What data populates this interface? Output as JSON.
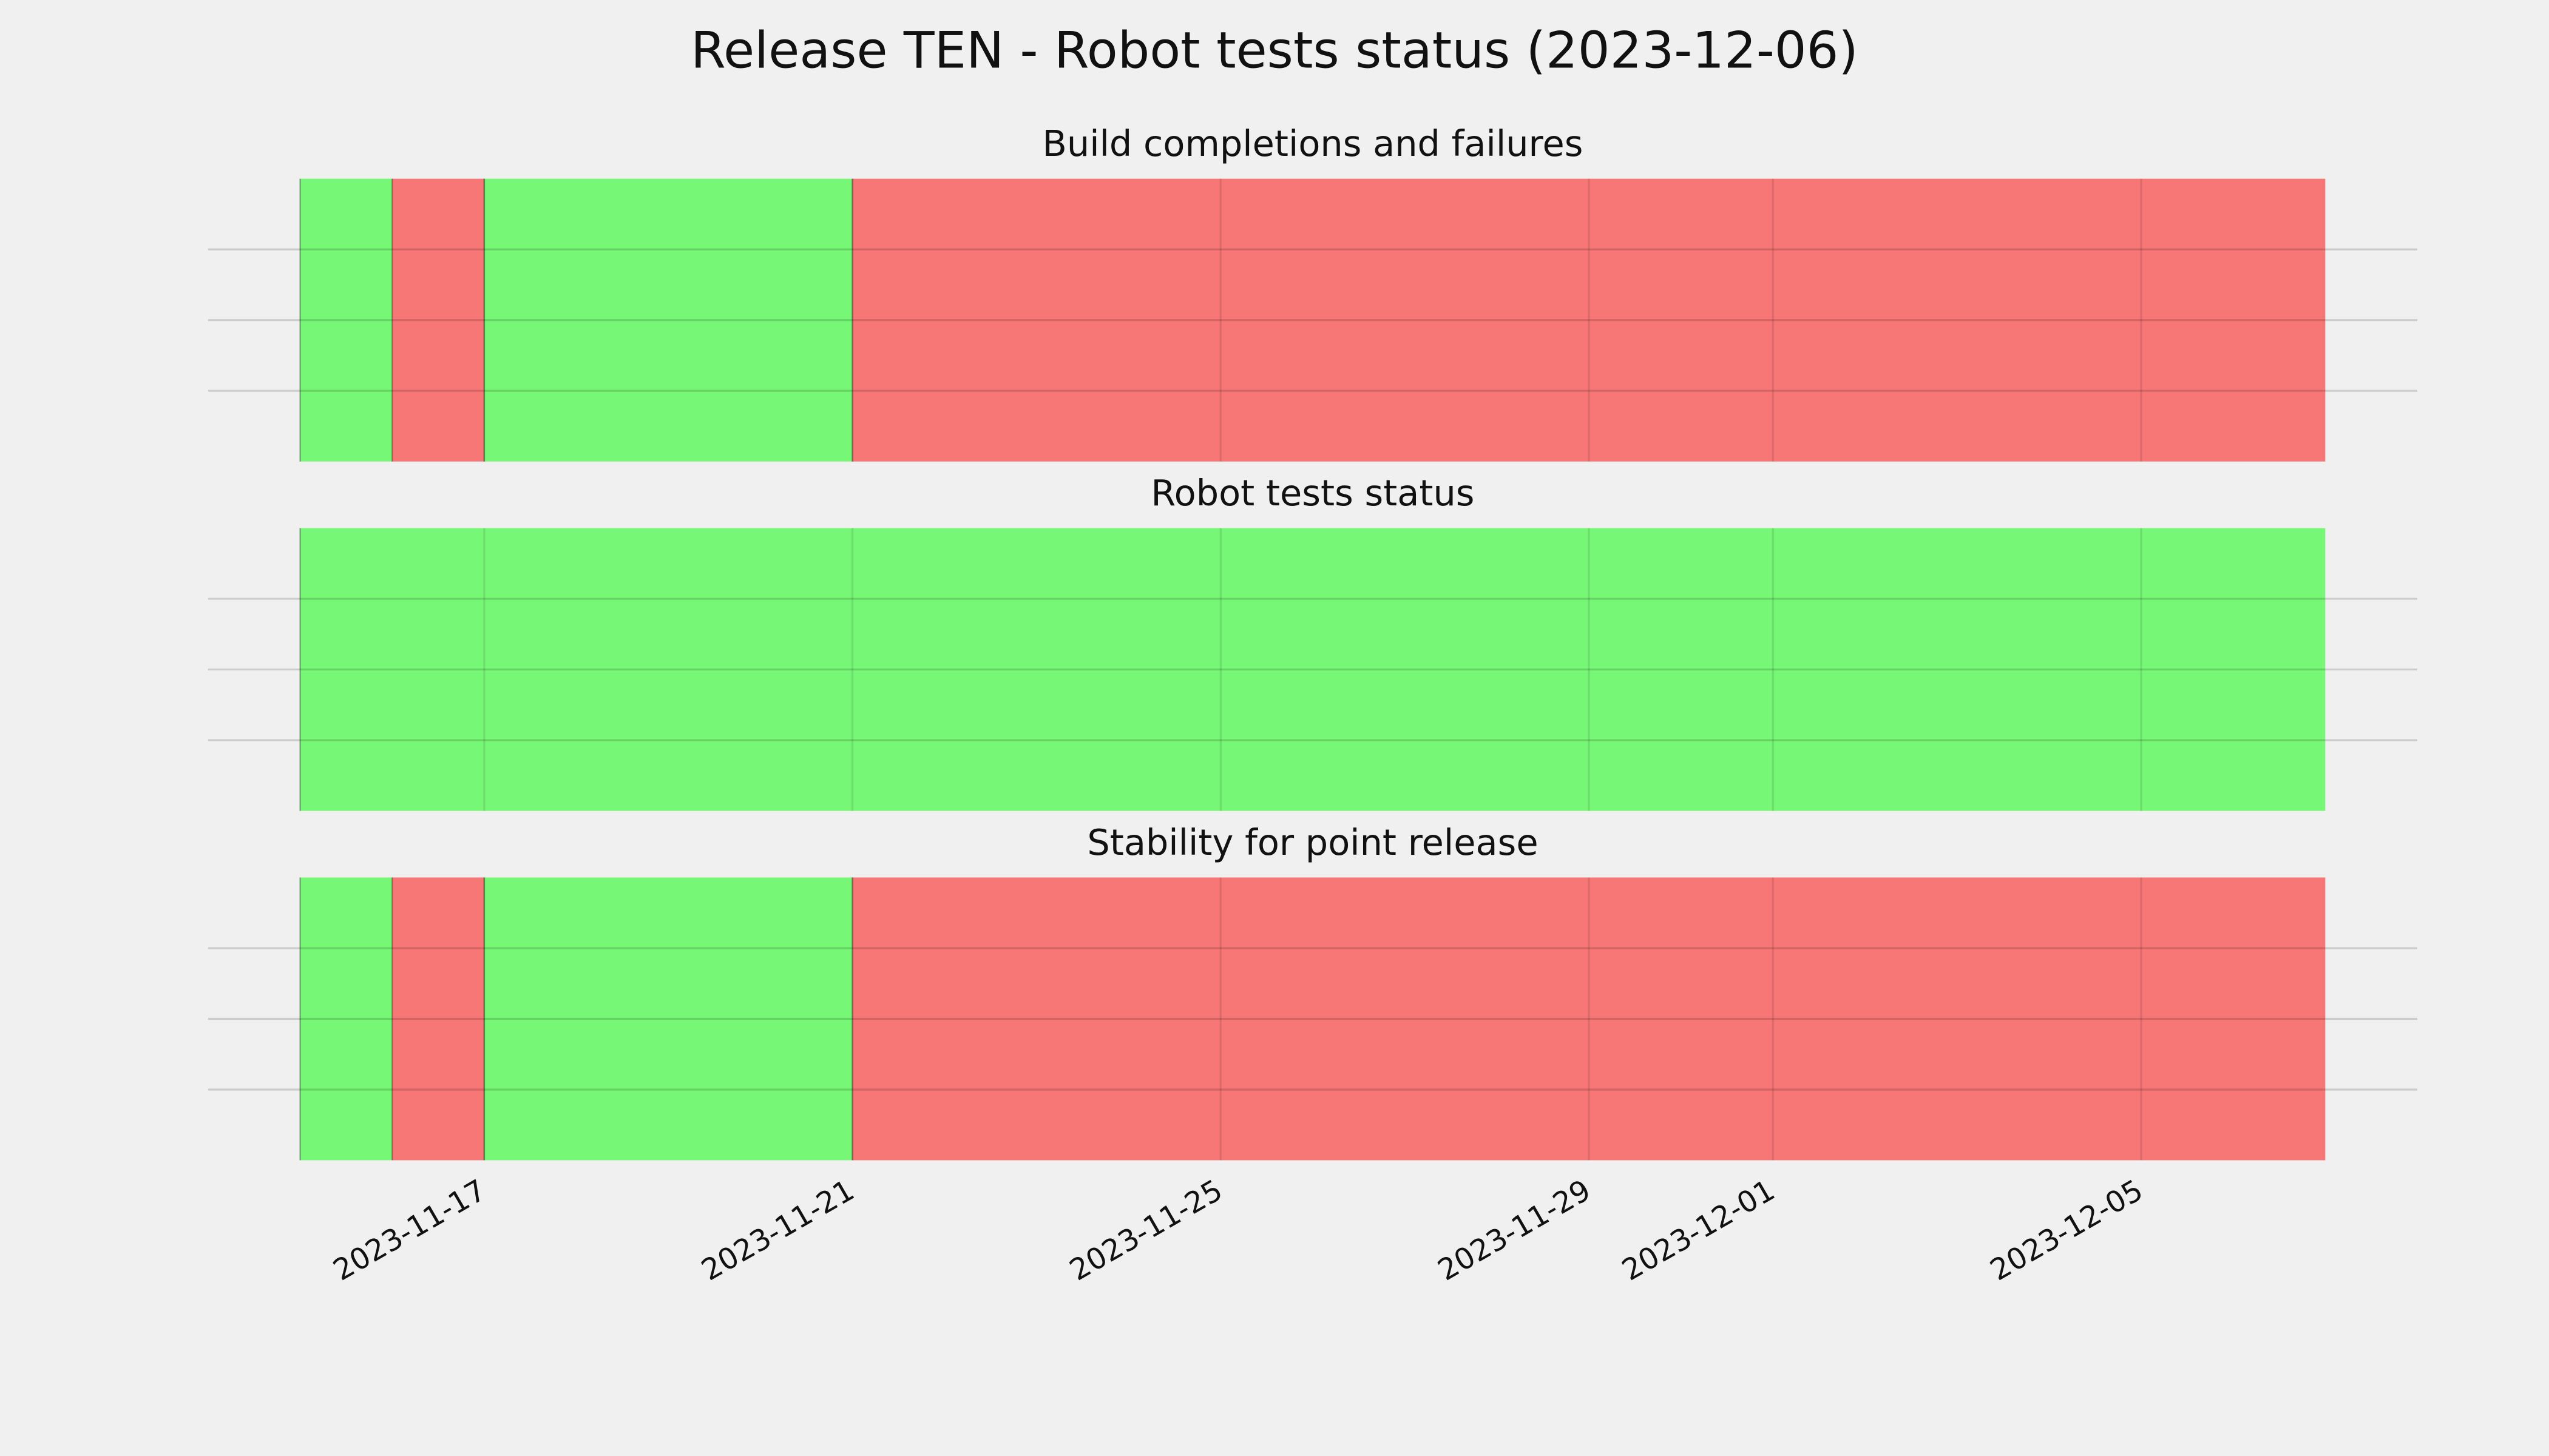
{
  "title": "Release TEN - Robot tests status (2023-12-06)",
  "chart_data": [
    {
      "type": "timeline",
      "title": "Build completions and failures",
      "segments": [
        {
          "start": "2023-11-15",
          "end": "2023-11-16",
          "color": "#76f776"
        },
        {
          "start": "2023-11-16",
          "end": "2023-11-17",
          "color": "#f77676"
        },
        {
          "start": "2023-11-17",
          "end": "2023-11-21",
          "color": "#76f776"
        },
        {
          "start": "2023-11-21",
          "end": "2023-12-07",
          "color": "#f77676"
        }
      ],
      "xlim": [
        "2023-11-14",
        "2023-12-08"
      ],
      "xticks": [
        "2023-11-17",
        "2023-11-21",
        "2023-11-25",
        "2023-11-29",
        "2023-12-01",
        "2023-12-05"
      ],
      "ylim": [
        0,
        1
      ],
      "yticks": [
        0.25,
        0.5,
        0.75
      ],
      "grid": true
    },
    {
      "type": "timeline",
      "title": "Robot tests status",
      "segments": [
        {
          "start": "2023-11-15",
          "end": "2023-12-07",
          "color": "#76f776"
        }
      ],
      "xlim": [
        "2023-11-14",
        "2023-12-08"
      ],
      "xticks": [
        "2023-11-17",
        "2023-11-21",
        "2023-11-25",
        "2023-11-29",
        "2023-12-01",
        "2023-12-05"
      ],
      "ylim": [
        0,
        1
      ],
      "yticks": [
        0.25,
        0.5,
        0.75
      ],
      "grid": true
    },
    {
      "type": "timeline",
      "title": "Stability for point release",
      "segments": [
        {
          "start": "2023-11-15",
          "end": "2023-11-16",
          "color": "#76f776"
        },
        {
          "start": "2023-11-16",
          "end": "2023-11-17",
          "color": "#f77676"
        },
        {
          "start": "2023-11-17",
          "end": "2023-11-21",
          "color": "#76f776"
        },
        {
          "start": "2023-11-21",
          "end": "2023-12-07",
          "color": "#f77676"
        }
      ],
      "xlim": [
        "2023-11-14",
        "2023-12-08"
      ],
      "xticks": [
        "2023-11-17",
        "2023-11-21",
        "2023-11-25",
        "2023-11-29",
        "2023-12-01",
        "2023-12-05"
      ],
      "ylim": [
        0,
        1
      ],
      "yticks": [
        0.25,
        0.5,
        0.75
      ],
      "grid": true
    }
  ]
}
